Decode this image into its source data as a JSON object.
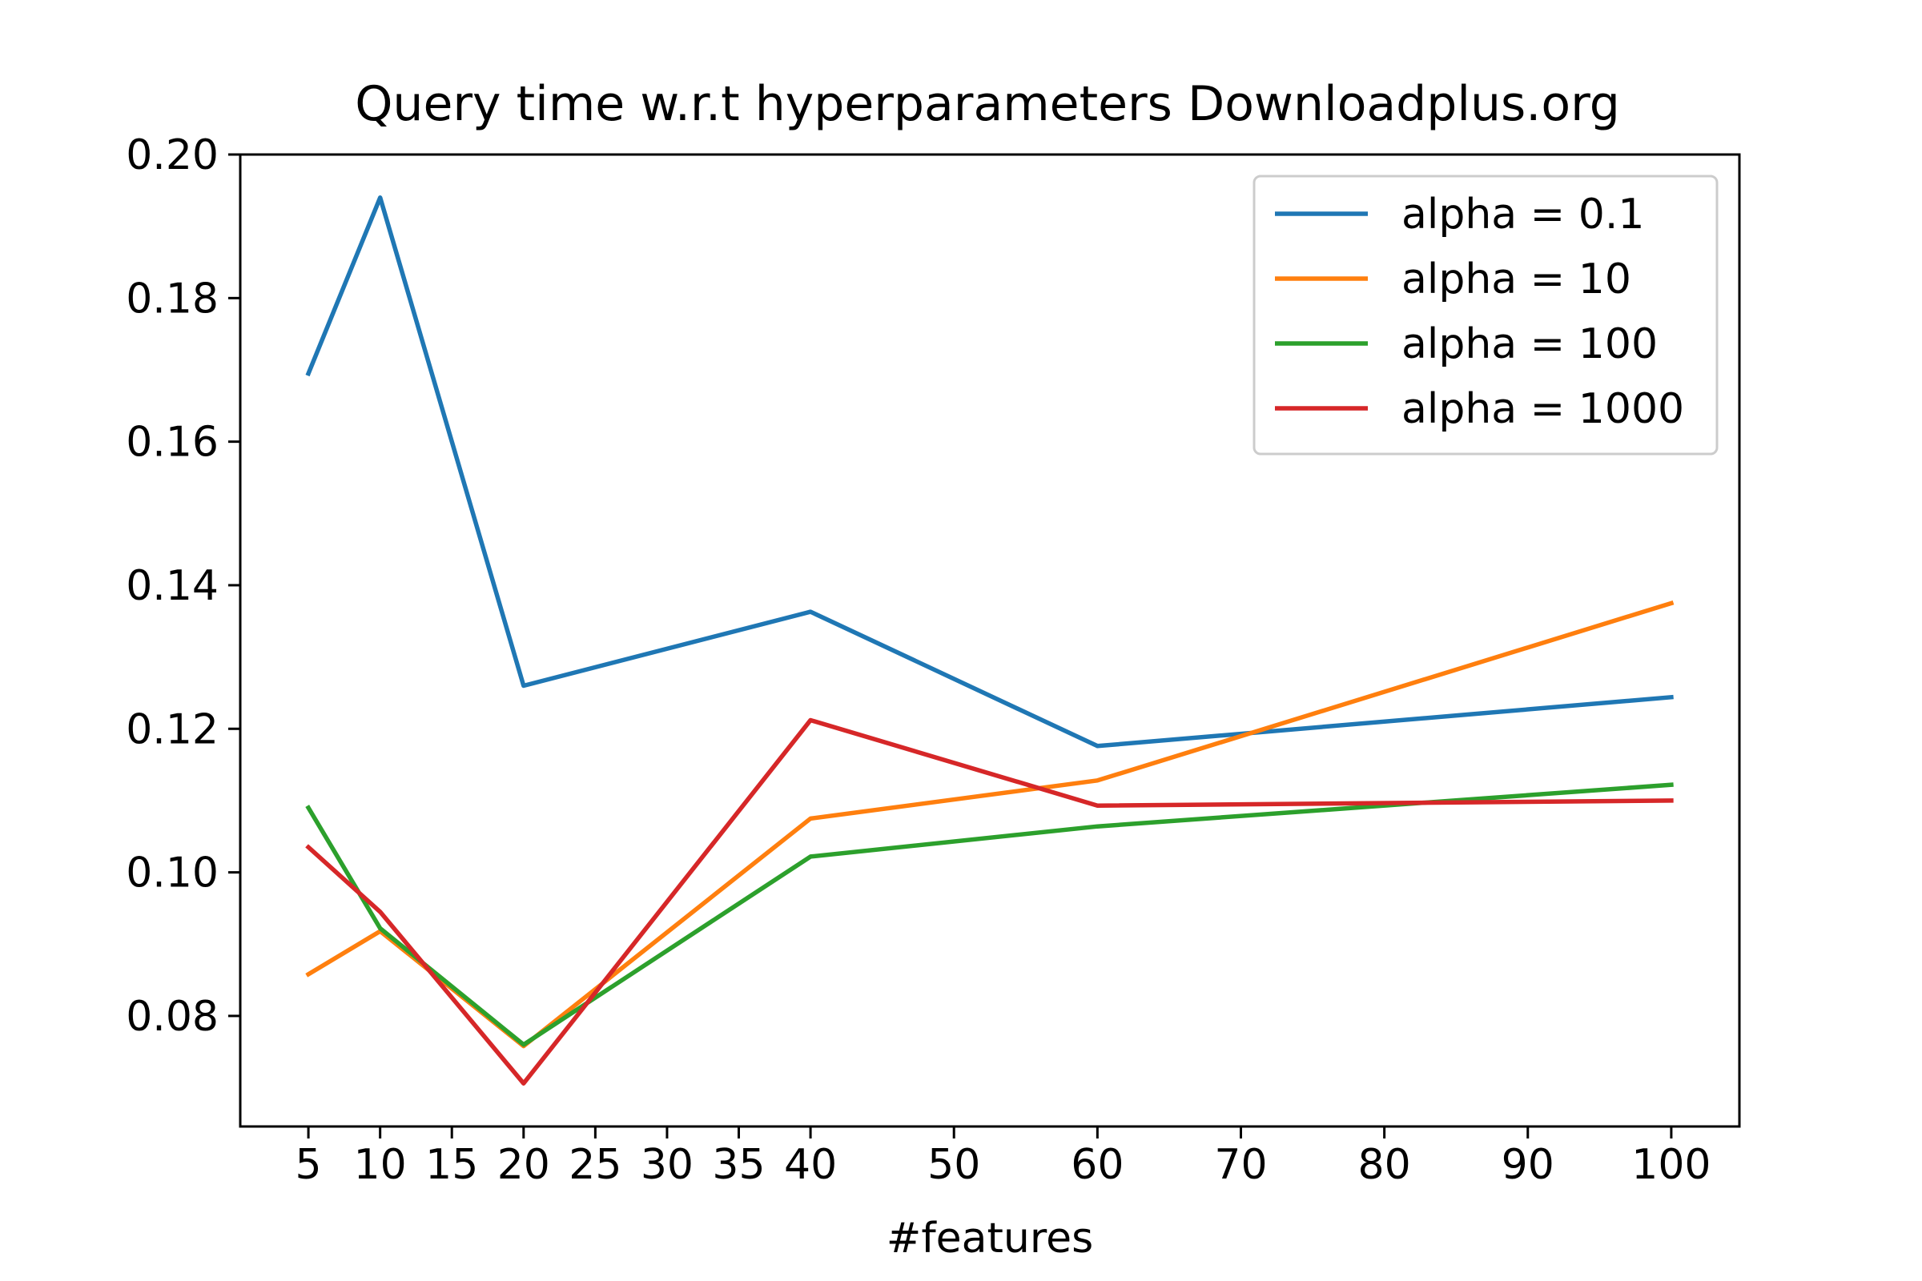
{
  "chart_data": {
    "type": "line",
    "title": "Query time w.r.t hyperparameters Downloadplus.org",
    "xlabel": "#features",
    "ylabel": "",
    "x": [
      5,
      10,
      20,
      40,
      60,
      100
    ],
    "xticks": [
      5,
      10,
      15,
      20,
      25,
      30,
      35,
      40,
      50,
      60,
      70,
      80,
      90,
      100
    ],
    "xtick_labels": [
      "5",
      "10",
      "15",
      "20",
      "25",
      "30",
      "35",
      "40",
      "50",
      "60",
      "70",
      "80",
      "90",
      "100"
    ],
    "xlim": [
      0.25,
      104.75
    ],
    "yticks": [
      0.08,
      0.1,
      0.12,
      0.14,
      0.16,
      0.18,
      0.2
    ],
    "ytick_labels": [
      "0.08",
      "0.10",
      "0.12",
      "0.14",
      "0.16",
      "0.18",
      "0.20"
    ],
    "ylim": [
      0.0646,
      0.2
    ],
    "grid": false,
    "legend_position": "upper right",
    "series": [
      {
        "name": "alpha = 0.1",
        "color": "#1f77b4",
        "values": [
          0.1695,
          0.194,
          0.126,
          0.1363,
          0.1176,
          0.1244
        ]
      },
      {
        "name": "alpha = 10",
        "color": "#ff7f0e",
        "values": [
          0.0858,
          0.0918,
          0.0758,
          0.1075,
          0.1128,
          0.1375
        ]
      },
      {
        "name": "alpha = 100",
        "color": "#2ca02c",
        "values": [
          0.109,
          0.0922,
          0.076,
          0.1022,
          0.1064,
          0.1122
        ]
      },
      {
        "name": "alpha = 1000",
        "color": "#d62728",
        "values": [
          0.1035,
          0.0945,
          0.0706,
          0.1212,
          0.1093,
          0.11
        ]
      }
    ]
  }
}
